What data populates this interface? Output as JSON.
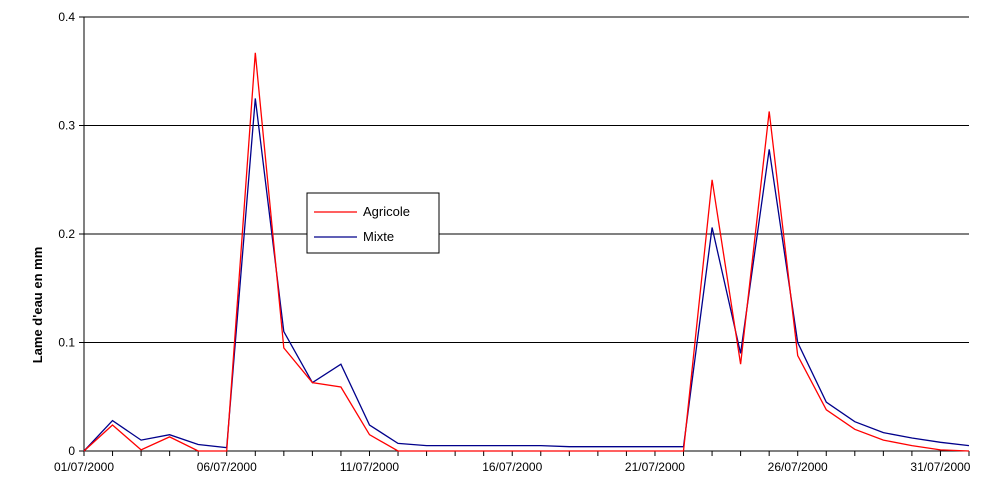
{
  "chart_data": {
    "type": "line",
    "title": "",
    "xlabel": "",
    "ylabel": "Lame d'eau en mm",
    "ylim": [
      0,
      0.4
    ],
    "yticks": [
      "0",
      "0.1",
      "0.2",
      "0.3",
      "0.4"
    ],
    "x": [
      "01/07/2000",
      "02/07/2000",
      "03/07/2000",
      "04/07/2000",
      "05/07/2000",
      "06/07/2000",
      "07/07/2000",
      "08/07/2000",
      "09/07/2000",
      "10/07/2000",
      "11/07/2000",
      "12/07/2000",
      "13/07/2000",
      "14/07/2000",
      "15/07/2000",
      "16/07/2000",
      "17/07/2000",
      "18/07/2000",
      "19/07/2000",
      "20/07/2000",
      "21/07/2000",
      "22/07/2000",
      "23/07/2000",
      "24/07/2000",
      "25/07/2000",
      "26/07/2000",
      "27/07/2000",
      "28/07/2000",
      "29/07/2000",
      "30/07/2000",
      "31/07/2000",
      "01/08/2000"
    ],
    "xtick_labels": [
      "01/07/2000",
      "06/07/2000",
      "11/07/2000",
      "16/07/2000",
      "21/07/2000",
      "26/07/2000",
      "31/07/2000"
    ],
    "grid": "horizontal",
    "legend": "center-left",
    "series": [
      {
        "name": "Agricole",
        "color": "#ff0000",
        "values": [
          0,
          0.024,
          0.001,
          0.013,
          0,
          0,
          0.367,
          0.095,
          0.063,
          0.059,
          0.015,
          0,
          0,
          0,
          0,
          0,
          0,
          0,
          0,
          0,
          0,
          0,
          0.25,
          0.08,
          0.313,
          0.088,
          0.038,
          0.02,
          0.01,
          0.005,
          0.001,
          0
        ]
      },
      {
        "name": "Mixte",
        "color": "#00008b",
        "values": [
          0,
          0.028,
          0.01,
          0.015,
          0.006,
          0.003,
          0.325,
          0.11,
          0.063,
          0.08,
          0.024,
          0.007,
          0.005,
          0.005,
          0.005,
          0.005,
          0.005,
          0.004,
          0.004,
          0.004,
          0.004,
          0.004,
          0.206,
          0.09,
          0.278,
          0.1,
          0.045,
          0.027,
          0.017,
          0.012,
          0.008,
          0.005
        ]
      }
    ]
  }
}
